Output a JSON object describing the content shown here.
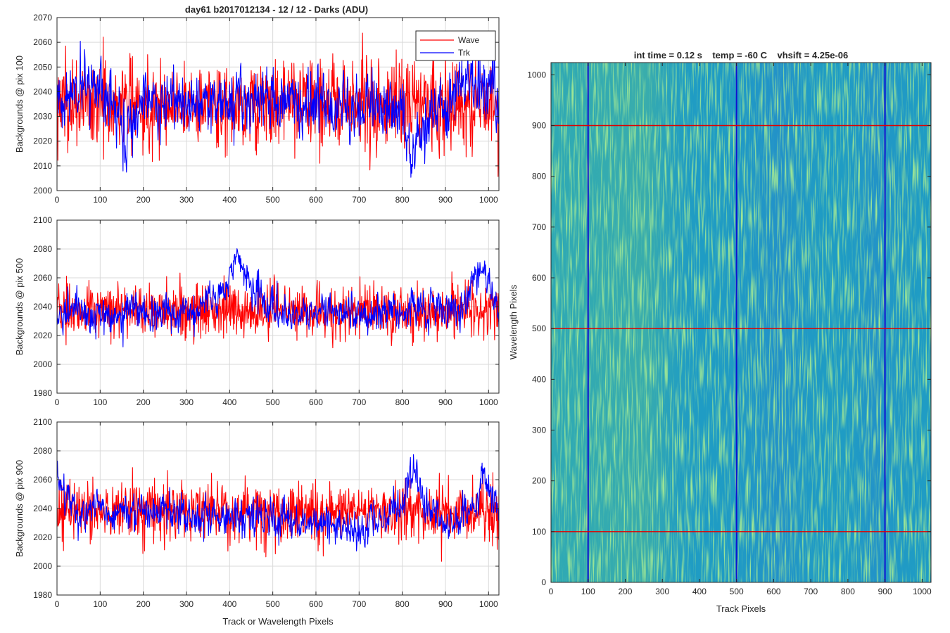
{
  "figure": {
    "title": "day61 b2017012134 - 12 / 12 - Darks (ADU)"
  },
  "colors": {
    "wave": "#ff0000",
    "trk": "#0000ff",
    "grid": "#d9d9d9",
    "axis": "#262626",
    "image_base": "#1f9cc4",
    "image_bright": "#8fc85a",
    "image_dark": "#2a62c8"
  },
  "chart_data": [
    {
      "type": "line",
      "title": "day61 b2017012134 - 12 / 12 - Darks (ADU)",
      "xlabel": "",
      "ylabel": "Backgrounds @ pix 100",
      "xlim": [
        0,
        1024
      ],
      "ylim": [
        2000,
        2070
      ],
      "xticks": [
        0,
        100,
        200,
        300,
        400,
        500,
        600,
        700,
        800,
        900,
        1000
      ],
      "yticks": [
        2000,
        2010,
        2020,
        2030,
        2040,
        2050,
        2060,
        2070
      ],
      "grid": true,
      "legend": {
        "placement": "top-right",
        "entries": [
          "Wave",
          "Trk"
        ]
      },
      "series": [
        {
          "name": "Wave",
          "color": "#ff0000",
          "baseline": 2035,
          "noise": 9,
          "keypoints": []
        },
        {
          "name": "Trk",
          "color": "#0000ff",
          "baseline": 2036,
          "noise": 7,
          "keypoints": [
            [
              0,
              2036
            ],
            [
              80,
              2046
            ],
            [
              130,
              2036
            ],
            [
              160,
              2024
            ],
            [
              200,
              2036
            ],
            [
              600,
              2036
            ],
            [
              640,
              2034
            ],
            [
              800,
              2032
            ],
            [
              820,
              2015
            ],
            [
              850,
              2028
            ],
            [
              900,
              2036
            ],
            [
              980,
              2045
            ],
            [
              1024,
              2036
            ]
          ]
        }
      ]
    },
    {
      "type": "line",
      "title": "",
      "xlabel": "",
      "ylabel": "Backgrounds @ pix 500",
      "xlim": [
        0,
        1024
      ],
      "ylim": [
        1980,
        2100
      ],
      "xticks": [
        0,
        100,
        200,
        300,
        400,
        500,
        600,
        700,
        800,
        900,
        1000
      ],
      "yticks": [
        1980,
        2000,
        2020,
        2040,
        2060,
        2080,
        2100
      ],
      "grid": true,
      "series": [
        {
          "name": "Wave",
          "color": "#ff0000",
          "baseline": 2037,
          "noise": 9,
          "keypoints": []
        },
        {
          "name": "Trk",
          "color": "#0000ff",
          "baseline": 2036,
          "noise": 7,
          "keypoints": [
            [
              0,
              2035
            ],
            [
              300,
              2036
            ],
            [
              380,
              2050
            ],
            [
              420,
              2075
            ],
            [
              460,
              2050
            ],
            [
              500,
              2036
            ],
            [
              940,
              2038
            ],
            [
              980,
              2070
            ],
            [
              1024,
              2040
            ]
          ]
        }
      ]
    },
    {
      "type": "line",
      "title": "",
      "xlabel": "Track or Wavelength Pixels",
      "ylabel": "Backgrounds @ pix 900",
      "xlim": [
        0,
        1024
      ],
      "ylim": [
        1980,
        2100
      ],
      "xticks": [
        0,
        100,
        200,
        300,
        400,
        500,
        600,
        700,
        800,
        900,
        1000
      ],
      "yticks": [
        1980,
        2000,
        2020,
        2040,
        2060,
        2080,
        2100
      ],
      "grid": true,
      "series": [
        {
          "name": "Wave",
          "color": "#ff0000",
          "baseline": 2038,
          "noise": 10,
          "keypoints": []
        },
        {
          "name": "Trk",
          "color": "#0000ff",
          "baseline": 2034,
          "noise": 7,
          "keypoints": [
            [
              0,
              2062
            ],
            [
              40,
              2040
            ],
            [
              300,
              2036
            ],
            [
              600,
              2030
            ],
            [
              700,
              2024
            ],
            [
              800,
              2040
            ],
            [
              820,
              2065
            ],
            [
              860,
              2040
            ],
            [
              900,
              2030
            ],
            [
              970,
              2040
            ],
            [
              985,
              2065
            ],
            [
              1024,
              2040
            ]
          ]
        }
      ]
    },
    {
      "type": "heatmap",
      "title": "int time = 0.12 s    temp = -60 C    vhsift = 4.25e-06",
      "xlabel": "Track Pixels",
      "ylabel": "Wavelength Pixels",
      "xlim": [
        0,
        1024
      ],
      "ylim": [
        0,
        1024
      ],
      "xticks": [
        0,
        100,
        200,
        300,
        400,
        500,
        600,
        700,
        800,
        900,
        1000
      ],
      "yticks": [
        0,
        100,
        200,
        300,
        400,
        500,
        600,
        700,
        800,
        900,
        1000
      ],
      "grid": false,
      "marker_lines": {
        "vertical_blue_at_track": [
          100,
          500,
          900
        ],
        "horizontal_red_at_wavelength": [
          100,
          500,
          900
        ]
      }
    }
  ]
}
